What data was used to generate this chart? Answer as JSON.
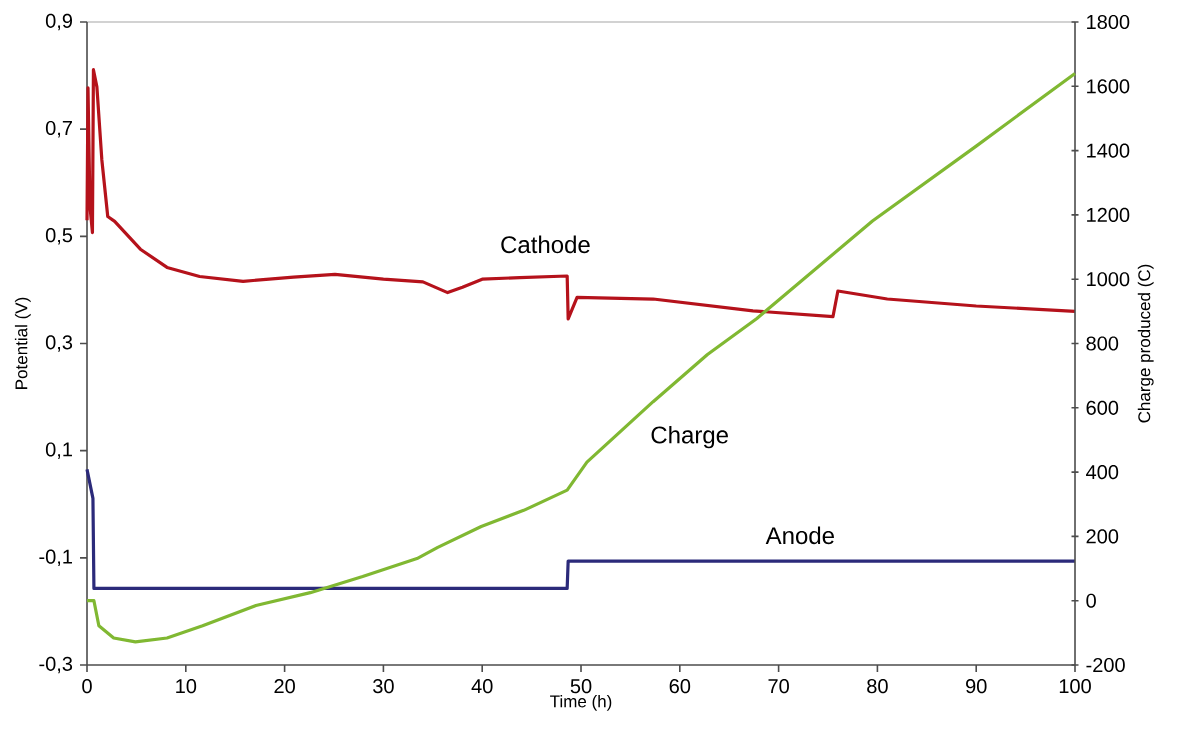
{
  "chart_data": {
    "type": "line",
    "xlabel": "Time (h)",
    "ylabel": "Potential (V)",
    "y2label": "Charge produced (C)",
    "xlim": [
      0,
      100
    ],
    "xticks": [
      0,
      10,
      20,
      30,
      40,
      50,
      60,
      70,
      80,
      90,
      100
    ],
    "ylim": [
      -0.3,
      0.9
    ],
    "yticks": [
      {
        "value": -0.3,
        "label": "-0,3"
      },
      {
        "value": -0.1,
        "label": "-0,1"
      },
      {
        "value": 0.1,
        "label": "0,1"
      },
      {
        "value": 0.3,
        "label": "0,3"
      },
      {
        "value": 0.5,
        "label": "0,5"
      },
      {
        "value": 0.7,
        "label": "0,7"
      },
      {
        "value": 0.9,
        "label": "0,9"
      }
    ],
    "y2lim": [
      -200,
      1800
    ],
    "y2ticks": [
      -200,
      0,
      200,
      400,
      600,
      800,
      1000,
      1200,
      1400,
      1600,
      1800
    ],
    "series": [
      {
        "name": "Cathode",
        "color": "#b5121b",
        "x": [
          0,
          0.1,
          0.3,
          0.55,
          0.65,
          1,
          1.5,
          2.1,
          2.8,
          5.4,
          8.1,
          11.4,
          15.8,
          20.9,
          25.1,
          30,
          34,
          36.5,
          38,
          40,
          43.8,
          48.6,
          48.7,
          49.6,
          57.3,
          67.4,
          75.5,
          76,
          81,
          90,
          100
        ],
        "values": [
          0.53,
          0.777,
          0.556,
          0.507,
          0.811,
          0.779,
          0.643,
          0.537,
          0.528,
          0.476,
          0.442,
          0.425,
          0.416,
          0.424,
          0.429,
          0.42,
          0.415,
          0.395,
          0.405,
          0.42,
          0.423,
          0.426,
          0.346,
          0.386,
          0.383,
          0.361,
          0.35,
          0.398,
          0.383,
          0.37,
          0.36
        ]
      },
      {
        "name": "Anode",
        "color": "#2b2a7a",
        "x": [
          0,
          0.6,
          0.7,
          48.6,
          48.7,
          100
        ],
        "values": [
          0.065,
          0.011,
          -0.157,
          -0.157,
          -0.106,
          -0.106
        ]
      },
      {
        "name": "Charge",
        "color": "#80b832",
        "axis": "y2",
        "x": [
          0,
          0.7,
          1.2,
          2.7,
          4.9,
          8.1,
          11.7,
          17.1,
          22.6,
          27.9,
          33.4,
          35.5,
          39.9,
          44.2,
          48.6,
          50.6,
          57.3,
          62.8,
          67.8,
          79.5,
          90,
          100
        ],
        "values": [
          0,
          0,
          -78,
          -116,
          -128,
          -116,
          -78,
          -15,
          25,
          75,
          131,
          166,
          231,
          281,
          344,
          431,
          619,
          766,
          878,
          1181,
          1414,
          1640
        ]
      }
    ]
  }
}
